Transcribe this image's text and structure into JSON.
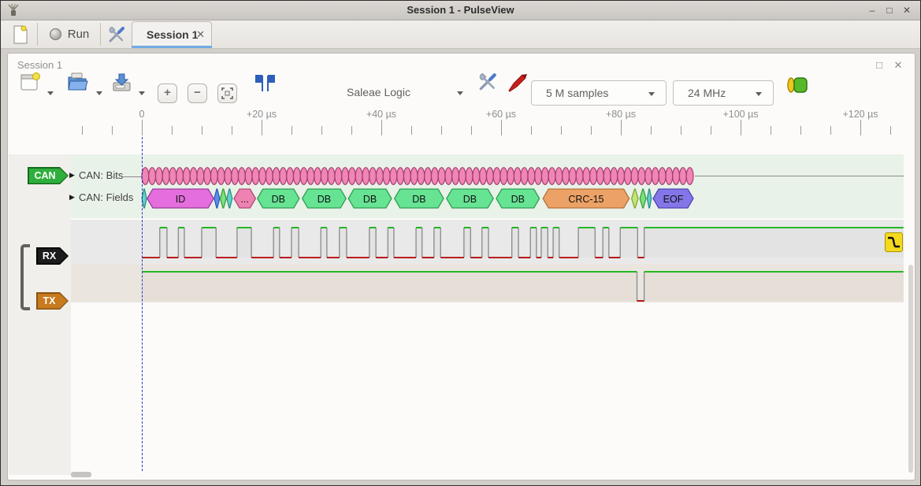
{
  "window": {
    "title": "Session 1 - PulseView",
    "minimize_glyph": "–",
    "maximize_glyph": "□",
    "close_glyph": "✕"
  },
  "main_toolbar": {
    "run_label": "Run",
    "tab_label": "Session 1",
    "tab_close_glyph": "✕"
  },
  "dock": {
    "title": "Session 1",
    "maximize_glyph": "□",
    "close_glyph": "✕"
  },
  "session_toolbar": {
    "device": "Saleae Logic",
    "sample_count": "5 M samples",
    "sample_rate": "24 MHz"
  },
  "ruler": {
    "majors": [
      {
        "us": 0,
        "label": "0"
      },
      {
        "us": 20,
        "label": "+20 µs"
      },
      {
        "us": 40,
        "label": "+40 µs"
      },
      {
        "us": 60,
        "label": "+60 µs"
      },
      {
        "us": 80,
        "label": "+80 µs"
      },
      {
        "us": 100,
        "label": "+100 µs"
      },
      {
        "us": 120,
        "label": "+120 µs"
      }
    ]
  },
  "decoder": {
    "tag": "CAN",
    "rows": [
      {
        "label": "CAN: Bits"
      },
      {
        "label": "CAN: Fields"
      }
    ],
    "bits": {
      "count": 80,
      "start_us": 0,
      "end_us": 92.1
    },
    "fields": [
      {
        "label": "",
        "color": "teal",
        "start_us": 0.0,
        "end_us": 0.8
      },
      {
        "label": "ID",
        "color": "id",
        "start_us": 0.9,
        "end_us": 12.0
      },
      {
        "label": "",
        "color": "blue",
        "start_us": 12.1,
        "end_us": 13.0
      },
      {
        "label": "",
        "color": "green",
        "start_us": 13.1,
        "end_us": 14.1
      },
      {
        "label": "",
        "color": "teal",
        "start_us": 14.2,
        "end_us": 15.1
      },
      {
        "label": "...",
        "color": "pink",
        "start_us": 15.4,
        "end_us": 19.0
      },
      {
        "label": "DB",
        "color": "db",
        "start_us": 19.3,
        "end_us": 26.3
      },
      {
        "label": "DB",
        "color": "db",
        "start_us": 26.8,
        "end_us": 34.1
      },
      {
        "label": "DB",
        "color": "db",
        "start_us": 34.5,
        "end_us": 41.7
      },
      {
        "label": "DB",
        "color": "db",
        "start_us": 42.2,
        "end_us": 50.4
      },
      {
        "label": "DB",
        "color": "db",
        "start_us": 50.9,
        "end_us": 58.7
      },
      {
        "label": "DB",
        "color": "db",
        "start_us": 59.2,
        "end_us": 66.4
      },
      {
        "label": "CRC-15",
        "color": "crc",
        "start_us": 67.0,
        "end_us": 81.4
      },
      {
        "label": "",
        "color": "yellowgreen",
        "start_us": 81.8,
        "end_us": 82.9
      },
      {
        "label": "",
        "color": "green",
        "start_us": 83.2,
        "end_us": 84.2
      },
      {
        "label": "",
        "color": "teal",
        "start_us": 84.4,
        "end_us": 85.1
      },
      {
        "label": "EOF",
        "color": "eof",
        "start_us": 85.4,
        "end_us": 92.1
      }
    ]
  },
  "channels": [
    {
      "tag": "RX",
      "tag_fill": "#1c1c1c",
      "tag_border": "#000000",
      "row_bg": "#e9e9e9",
      "fill": "#e3e3e3",
      "high_us": [
        [
          3.0,
          4.2
        ],
        [
          6.1,
          7.1
        ],
        [
          10.0,
          12.4
        ],
        [
          15.9,
          18.3
        ],
        [
          22.0,
          23.0
        ],
        [
          25.0,
          26.2
        ],
        [
          29.9,
          30.9
        ],
        [
          33.0,
          34.2
        ],
        [
          38.0,
          39.1
        ],
        [
          41.1,
          42.1
        ],
        [
          45.8,
          46.8
        ],
        [
          48.8,
          49.9
        ],
        [
          53.8,
          54.9
        ],
        [
          56.8,
          57.9
        ],
        [
          61.8,
          62.9
        ],
        [
          64.9,
          65.9
        ],
        [
          66.7,
          67.8
        ],
        [
          68.7,
          69.7
        ],
        [
          72.9,
          75.7
        ],
        [
          77.0,
          78.0
        ],
        [
          79.9,
          82.8
        ],
        [
          83.9,
          127.2
        ]
      ]
    },
    {
      "tag": "TX",
      "tag_fill": "#c87a1e",
      "tag_border": "#8a5410",
      "row_bg": "#eae5de",
      "fill": "#e5dfd7",
      "high_us": [
        [
          0.0,
          82.7
        ],
        [
          83.9,
          127.2
        ]
      ]
    }
  ],
  "colors": {
    "decoder_row_bg": "#e9f2e8",
    "bit_fill": "#ef86b6",
    "bit_stroke": "#a63d72",
    "signal_high": "#0ab00a",
    "signal_low": "#b20000",
    "signal_edge": "#8f8f8f",
    "tag_can_fill": "#2fae3c",
    "tag_can_border": "#156b1e",
    "fields": {
      "teal": {
        "fill": "#62d2cc",
        "stroke": "#2e8f88"
      },
      "id": {
        "fill": "#e46ede",
        "stroke": "#9c3b96"
      },
      "blue": {
        "fill": "#5b8dee",
        "stroke": "#3558b8"
      },
      "green": {
        "fill": "#7de07d",
        "stroke": "#3a9e3a"
      },
      "pink": {
        "fill": "#ee82b0",
        "stroke": "#b04878"
      },
      "db": {
        "fill": "#66e393",
        "stroke": "#2e9e52"
      },
      "crc": {
        "fill": "#eca266",
        "stroke": "#b5713a"
      },
      "yellowgreen": {
        "fill": "#c3e578",
        "stroke": "#85a832"
      },
      "eof": {
        "fill": "#8376e8",
        "stroke": "#4f43b5"
      }
    }
  }
}
